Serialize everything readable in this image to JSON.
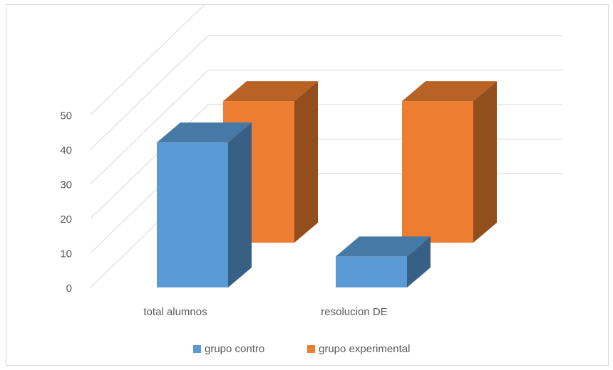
{
  "chart_data": {
    "type": "bar",
    "subtype": "3d-clustered-column",
    "title": "",
    "xlabel": "",
    "ylabel": "",
    "categories": [
      "total alumnos",
      "resolucion DE"
    ],
    "series": [
      {
        "name": "grupo contro",
        "values": [
          42,
          9
        ],
        "color": "#5b9bd5"
      },
      {
        "name": "grupo experimental",
        "values": [
          41,
          41
        ],
        "color": "#ed7d31"
      }
    ],
    "y_ticks": [
      "0",
      "10",
      "20",
      "30",
      "40",
      "50"
    ],
    "ylim": [
      0,
      50
    ],
    "grid": true,
    "legend_position": "bottom"
  }
}
